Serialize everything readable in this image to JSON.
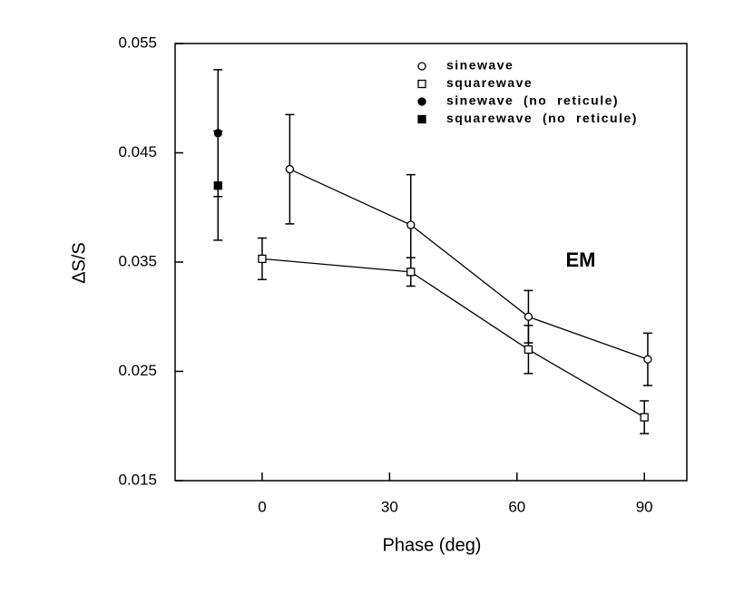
{
  "chart_data": {
    "type": "line",
    "xlabel": "Phase (deg)",
    "ylabel": "ΔS/S",
    "annotation": "EM",
    "xlim": [
      -20.5,
      100
    ],
    "xticks": [
      0,
      30,
      60,
      90
    ],
    "ylim": [
      0.015,
      0.055
    ],
    "yticks": [
      0.015,
      0.025,
      0.035,
      0.045,
      0.055
    ],
    "series": [
      {
        "name": "sinewave",
        "marker": "circle",
        "filled": false,
        "line": true,
        "color": "#000000",
        "x": [
          6.5,
          35,
          62.7,
          90.8
        ],
        "values": [
          0.0435,
          0.0384,
          0.03,
          0.0261
        ],
        "errors": [
          0.005,
          0.0046,
          0.0024,
          0.0024
        ]
      },
      {
        "name": "squarewave",
        "marker": "square",
        "filled": false,
        "line": true,
        "color": "#000000",
        "x": [
          0,
          35,
          62.7,
          90
        ],
        "values": [
          0.0353,
          0.0341,
          0.027,
          0.0208
        ],
        "errors": [
          0.0019,
          0.0013,
          0.0022,
          0.0015
        ]
      },
      {
        "name": "sinewave  (no  reticule)",
        "marker": "circle",
        "filled": true,
        "line": false,
        "color": "#000000",
        "x": [
          -10.4
        ],
        "values": [
          0.0468
        ],
        "errors": [
          0.0058
        ]
      },
      {
        "name": "squarewave  (no  reticule)",
        "marker": "square",
        "filled": true,
        "line": false,
        "color": "#000000",
        "x": [
          -10.4
        ],
        "values": [
          0.042
        ],
        "errors": [
          0.005
        ]
      }
    ]
  }
}
